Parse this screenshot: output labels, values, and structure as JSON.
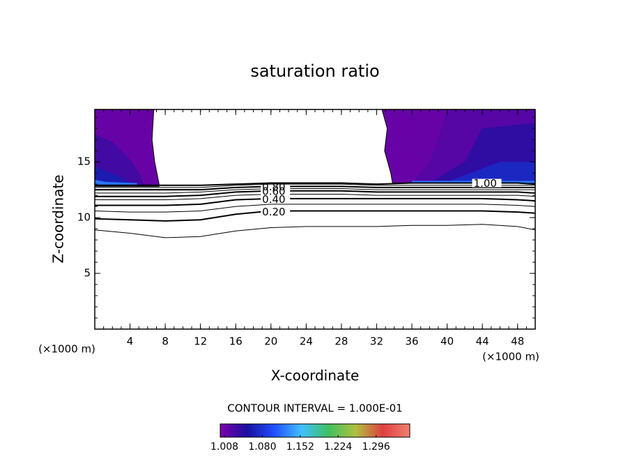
{
  "chart_data": {
    "type": "contour",
    "title": "saturation ratio",
    "xlabel": "X-coordinate",
    "ylabel": "Z-coordinate",
    "xunit": "(×1000 m)",
    "yunit": "(×1000 m)",
    "annotation": "CONTOUR INTERVAL = 1.000E-01",
    "xlim": [
      0,
      50
    ],
    "ylim": [
      0,
      19.7
    ],
    "xticks": [
      4,
      8,
      12,
      16,
      20,
      24,
      28,
      32,
      36,
      40,
      44,
      48
    ],
    "yticks": [
      5,
      10,
      15
    ],
    "line_color": "#000000",
    "colormap": [
      "#7a00a8",
      "#1a10a0",
      "#2050ff",
      "#40c0ff",
      "#40c060",
      "#b0c040",
      "#e04040",
      "#f08070"
    ],
    "clim": [
      1.0,
      1.36
    ],
    "cticks": [
      1.008,
      {
        "value": 1.08,
        "label": "1.080"
      },
      1.152,
      1.224,
      1.296
    ],
    "regions": [
      {
        "value": 1.01,
        "x": [
          0,
          6.7,
          6.5,
          6.8,
          7.3,
          7.3,
          0
        ],
        "y": [
          19.7,
          19.7,
          17,
          15,
          13,
          12.8,
          12.8
        ]
      },
      {
        "value": 1.03,
        "x": [
          0,
          2,
          4,
          5.2,
          5.6,
          0
        ],
        "y": [
          17.5,
          16.8,
          15.2,
          13.8,
          12.9,
          12.9
        ]
      },
      {
        "value": 1.06,
        "x": [
          0,
          2.5,
          4.5,
          0
        ],
        "y": [
          14.6,
          13.8,
          12.9,
          12.9
        ]
      },
      {
        "value": 1.12,
        "x": [
          0,
          1.2,
          4.8,
          4.8,
          0
        ],
        "y": [
          13.4,
          13.2,
          13.1,
          12.9,
          12.9
        ]
      },
      {
        "value": 1.01,
        "x": [
          32.6,
          50,
          50,
          33.8,
          33.6,
          32.9,
          33.2
        ],
        "y": [
          19.7,
          19.7,
          13.1,
          13.1,
          14,
          16,
          18
        ]
      },
      {
        "value": 1.02,
        "x": [
          40,
          50,
          50,
          36,
          38,
          39
        ],
        "y": [
          19.7,
          19.7,
          13.1,
          13.1,
          15,
          17
        ]
      },
      {
        "value": 1.04,
        "x": [
          44,
          50,
          50,
          38,
          42
        ],
        "y": [
          18,
          18.5,
          13.1,
          13.1,
          15
        ]
      },
      {
        "value": 1.07,
        "x": [
          46,
          50,
          50,
          40
        ],
        "y": [
          15,
          15,
          13.2,
          13.2
        ]
      },
      {
        "value": 1.12,
        "x": [
          36,
          50,
          50,
          36
        ],
        "y": [
          13.3,
          13.3,
          13.1,
          13.1
        ]
      }
    ],
    "contours": [
      {
        "level": 0.1,
        "x": [
          0,
          4,
          8,
          12,
          16,
          20,
          24,
          28,
          32,
          36,
          40,
          44,
          48,
          50
        ],
        "y": [
          8.9,
          8.6,
          8.2,
          8.3,
          8.8,
          9.1,
          9.2,
          9.2,
          9.2,
          9.3,
          9.3,
          9.4,
          9.2,
          8.9
        ]
      },
      {
        "level": 0.2,
        "label": "0.20",
        "label_x": 19,
        "x": [
          0,
          4,
          8,
          12,
          16,
          20,
          24,
          28,
          32,
          36,
          40,
          44,
          48,
          50
        ],
        "y": [
          9.9,
          9.8,
          9.7,
          9.8,
          10.3,
          10.6,
          10.6,
          10.6,
          10.6,
          10.6,
          10.6,
          10.6,
          10.5,
          10.4
        ]
      },
      {
        "level": 0.3,
        "x": [
          0,
          4,
          8,
          12,
          16,
          20,
          24,
          28,
          32,
          36,
          40,
          44,
          48,
          50
        ],
        "y": [
          10.6,
          10.5,
          10.5,
          10.6,
          11.0,
          11.2,
          11.2,
          11.2,
          11.2,
          11.2,
          11.2,
          11.2,
          11.1,
          11.0
        ]
      },
      {
        "level": 0.4,
        "label": "0.40",
        "label_x": 19,
        "x": [
          0,
          4,
          8,
          12,
          16,
          20,
          24,
          28,
          32,
          36,
          40,
          44,
          48,
          50
        ],
        "y": [
          11.1,
          11.1,
          11.1,
          11.2,
          11.6,
          11.7,
          11.7,
          11.7,
          11.7,
          11.7,
          11.7,
          11.7,
          11.6,
          11.5
        ]
      },
      {
        "level": 0.5,
        "x": [
          0,
          4,
          8,
          12,
          16,
          20,
          24,
          28,
          32,
          36,
          40,
          44,
          48,
          50
        ],
        "y": [
          11.6,
          11.6,
          11.6,
          11.7,
          12.0,
          12.1,
          12.1,
          12.1,
          12.0,
          12.0,
          12.0,
          12.0,
          12.0,
          11.9
        ]
      },
      {
        "level": 0.6,
        "label": "0.60",
        "label_x": 19,
        "x": [
          0,
          4,
          8,
          12,
          16,
          20,
          24,
          28,
          32,
          36,
          40,
          44,
          48,
          50
        ],
        "y": [
          11.9,
          11.9,
          11.9,
          12.0,
          12.3,
          12.4,
          12.4,
          12.4,
          12.3,
          12.3,
          12.3,
          12.3,
          12.3,
          12.2
        ]
      },
      {
        "level": 0.7,
        "x": [
          0,
          4,
          8,
          12,
          16,
          20,
          24,
          28,
          32,
          36,
          40,
          44,
          48,
          50
        ],
        "y": [
          12.2,
          12.2,
          12.2,
          12.3,
          12.5,
          12.6,
          12.6,
          12.6,
          12.5,
          12.5,
          12.5,
          12.5,
          12.5,
          12.5
        ]
      },
      {
        "level": 0.8,
        "label": "0.80",
        "label_x": 19,
        "x": [
          0,
          4,
          8,
          12,
          16,
          20,
          24,
          28,
          32,
          36,
          40,
          44,
          48,
          50
        ],
        "y": [
          12.5,
          12.5,
          12.5,
          12.5,
          12.7,
          12.8,
          12.8,
          12.8,
          12.7,
          12.7,
          12.7,
          12.7,
          12.7,
          12.7
        ]
      },
      {
        "level": 0.9,
        "x": [
          0,
          4,
          8,
          12,
          16,
          20,
          24,
          28,
          32,
          36,
          40,
          44,
          48,
          50
        ],
        "y": [
          12.7,
          12.7,
          12.7,
          12.7,
          12.9,
          13.0,
          13.0,
          13.0,
          12.9,
          12.9,
          12.9,
          12.9,
          12.9,
          12.9
        ]
      },
      {
        "level": 1.0,
        "label": "1.00",
        "label_x": 43,
        "x": [
          0,
          4,
          8,
          12,
          16,
          20,
          24,
          28,
          32,
          36,
          40,
          44,
          48,
          50
        ],
        "y": [
          12.9,
          12.9,
          12.9,
          12.9,
          13.0,
          13.1,
          13.1,
          13.1,
          13.0,
          13.1,
          13.1,
          13.1,
          13.1,
          13.0
        ]
      }
    ]
  }
}
